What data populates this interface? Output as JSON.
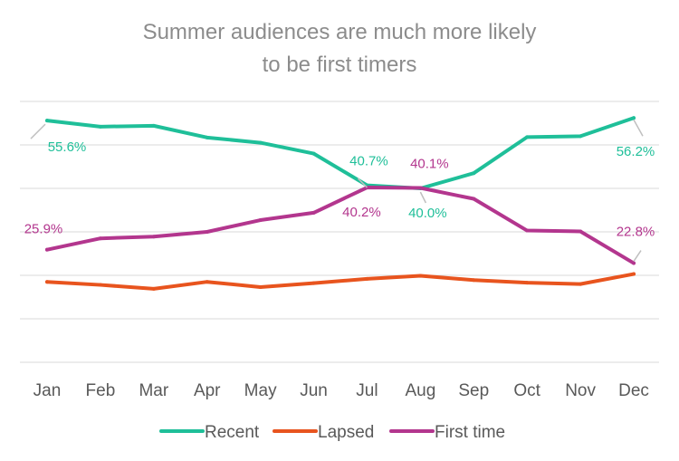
{
  "chart_data": {
    "type": "line",
    "title": "Summer audiences are much more likely to be first timers",
    "title_lines": [
      "Summer audiences are much more likely",
      "to be first timers"
    ],
    "xlabel": "",
    "ylabel": "",
    "categories": [
      "Jan",
      "Feb",
      "Mar",
      "Apr",
      "May",
      "Jun",
      "Jul",
      "Aug",
      "Sep",
      "Oct",
      "Nov",
      "Dec"
    ],
    "ylim": [
      0,
      60
    ],
    "grid": true,
    "legend_position": "bottom",
    "series": [
      {
        "name": "Recent",
        "color": "#1fbf99",
        "values": [
          55.6,
          54.2,
          54.4,
          51.7,
          50.5,
          48.0,
          40.7,
          40.0,
          43.5,
          51.8,
          52.0,
          56.2
        ],
        "labels": [
          {
            "index": 0,
            "text": "55.6%"
          },
          {
            "index": 6,
            "text": "40.7%"
          },
          {
            "index": 7,
            "text": "40.0%"
          },
          {
            "index": 11,
            "text": "56.2%"
          }
        ]
      },
      {
        "name": "Lapsed",
        "color": "#e8541e",
        "values": [
          18.5,
          17.8,
          16.9,
          18.5,
          17.3,
          18.2,
          19.2,
          19.9,
          18.9,
          18.3,
          18.0,
          20.3
        ],
        "labels": []
      },
      {
        "name": "First time",
        "color": "#b3368e",
        "values": [
          25.9,
          28.5,
          28.9,
          30.0,
          32.7,
          34.4,
          40.2,
          40.1,
          37.6,
          30.3,
          30.1,
          22.8
        ],
        "labels": [
          {
            "index": 0,
            "text": "25.9%"
          },
          {
            "index": 6,
            "text": "40.2%"
          },
          {
            "index": 7,
            "text": "40.1%"
          },
          {
            "index": 11,
            "text": "22.8%"
          }
        ]
      }
    ]
  }
}
